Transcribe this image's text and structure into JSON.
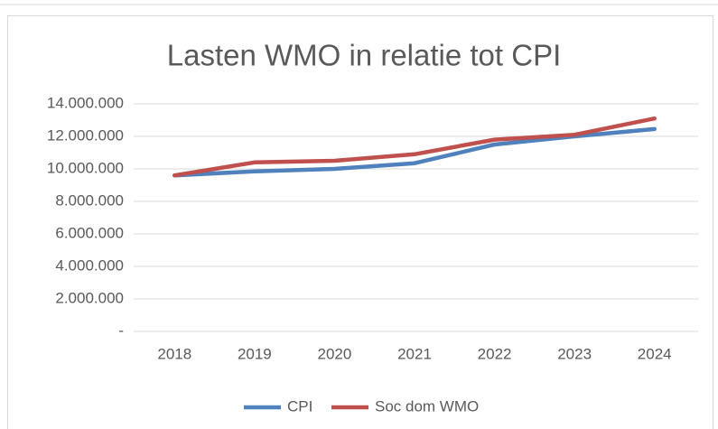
{
  "chart_data": {
    "type": "line",
    "title": "Lasten WMO in relatie tot CPI",
    "categories": [
      "2018",
      "2019",
      "2020",
      "2021",
      "2022",
      "2023",
      "2024"
    ],
    "series": [
      {
        "name": "CPI",
        "color": "#4f81bd",
        "values": [
          9600000,
          9850000,
          10000000,
          10350000,
          11500000,
          12000000,
          12450000
        ]
      },
      {
        "name": "Soc dom WMO",
        "color": "#c0504d",
        "values": [
          9600000,
          10400000,
          10500000,
          10900000,
          11800000,
          12100000,
          13100000
        ]
      }
    ],
    "ylim": [
      0,
      14000000
    ],
    "yticks": [
      {
        "value": 0,
        "label": "-"
      },
      {
        "value": 2000000,
        "label": "2.000.000"
      },
      {
        "value": 4000000,
        "label": "4.000.000"
      },
      {
        "value": 6000000,
        "label": "6.000.000"
      },
      {
        "value": 8000000,
        "label": "8.000.000"
      },
      {
        "value": 10000000,
        "label": "10.000.000"
      },
      {
        "value": 12000000,
        "label": "12.000.000"
      },
      {
        "value": 14000000,
        "label": "14.000.000"
      }
    ],
    "grid": true,
    "legend": "bottom"
  }
}
